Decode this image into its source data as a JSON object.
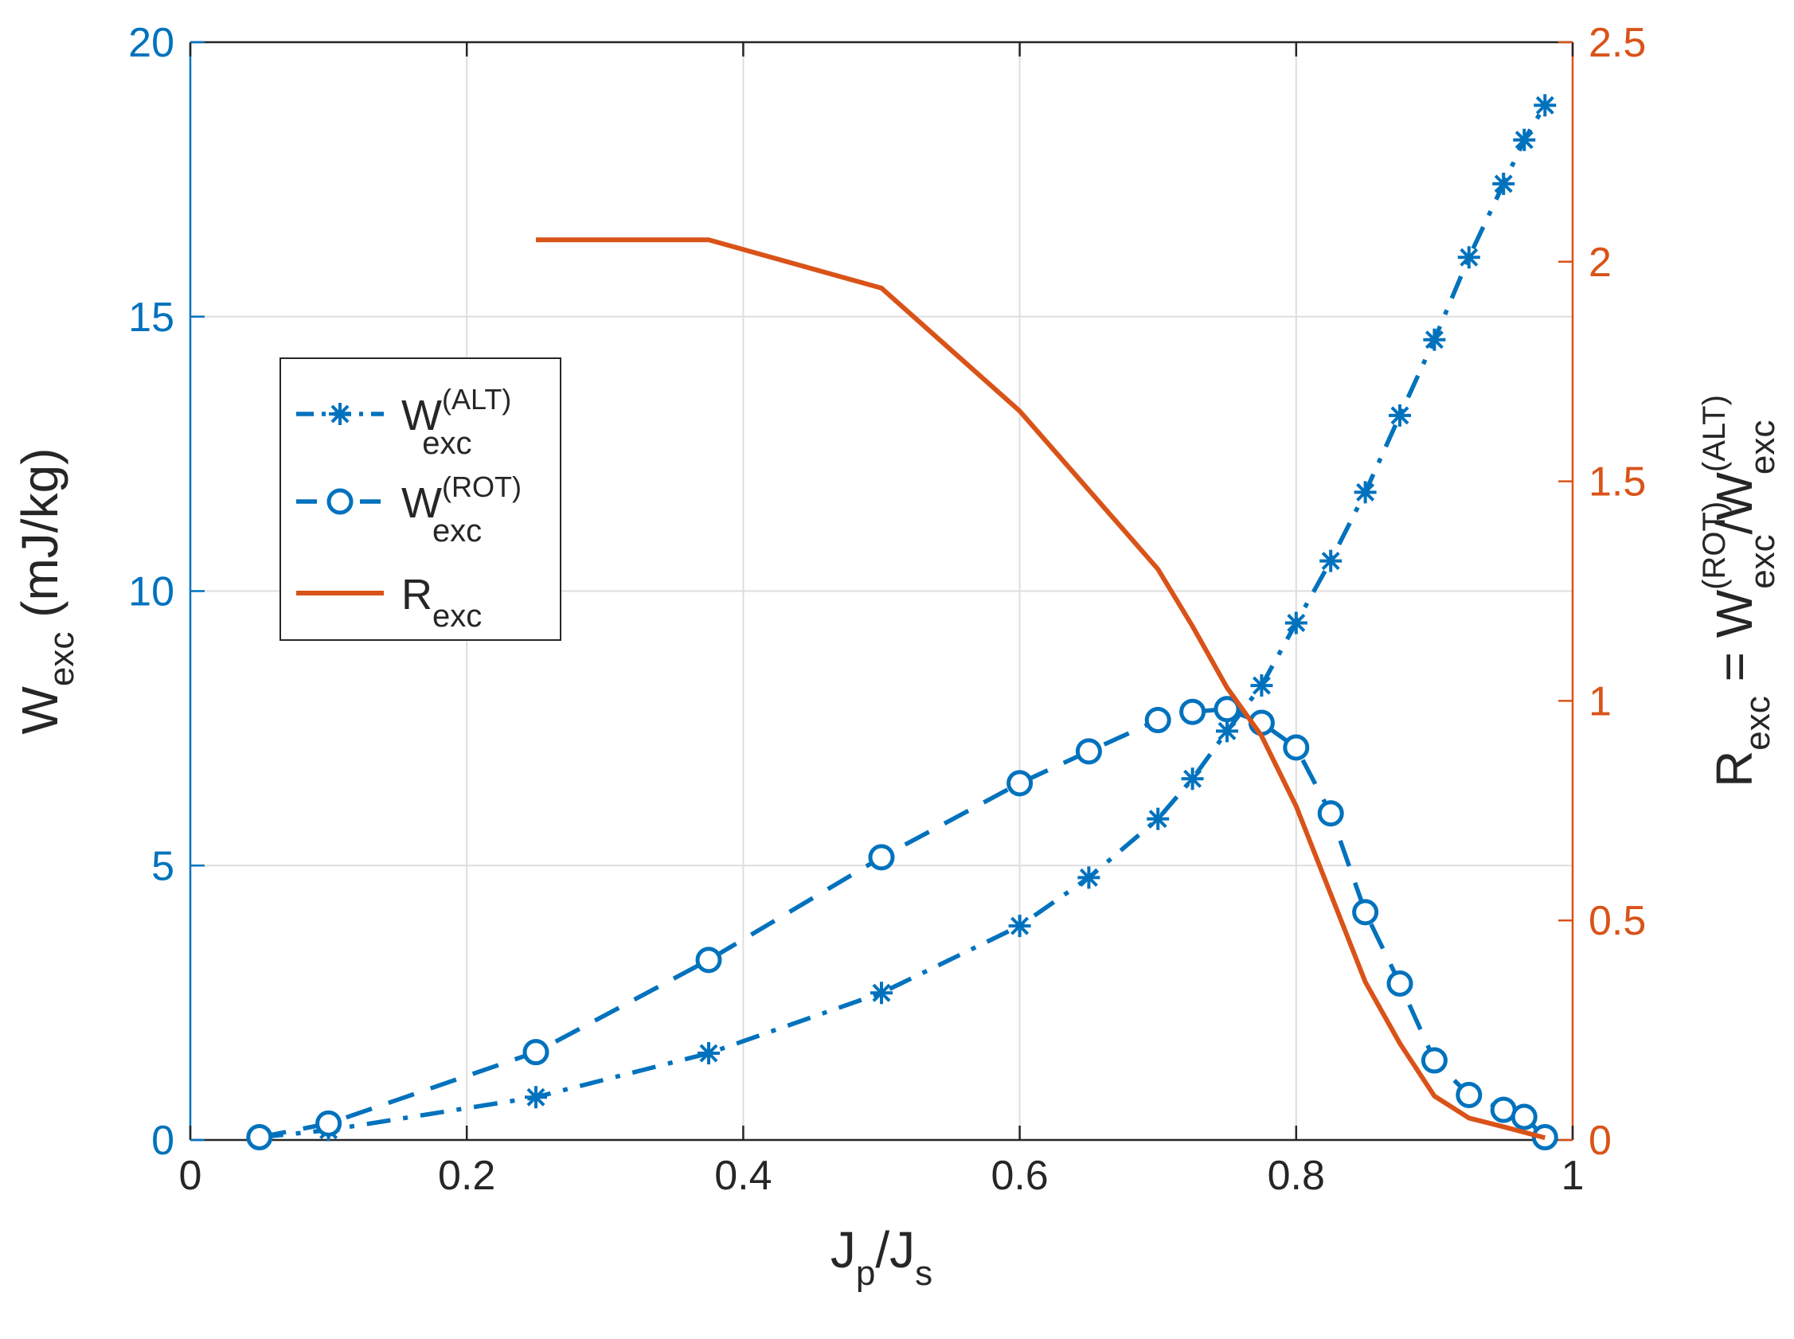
{
  "chart_data": {
    "type": "line",
    "x_axis": {
      "label": "J",
      "label_sub": "p",
      "label_mid": "/J",
      "label_sub2": "s",
      "lim": [
        0,
        1
      ],
      "ticks": [
        0,
        0.2,
        0.4,
        0.6,
        0.8,
        1
      ],
      "tick_labels": [
        "0",
        "0.2",
        "0.4",
        "0.6",
        "0.8",
        "1"
      ]
    },
    "y_left": {
      "label": "W",
      "label_sub": "exc",
      "label_unit": " (mJ/kg)",
      "lim": [
        0,
        20
      ],
      "ticks": [
        0,
        5,
        10,
        15,
        20
      ],
      "tick_labels": [
        "0",
        "5",
        "10",
        "15",
        "20"
      ],
      "color": "#0072BD"
    },
    "y_right": {
      "label_main": "R",
      "label_sub": "exc",
      "label_eq": " = W",
      "label_sup2": "(ROT)",
      "label_sub2": "exc",
      "label_div": "/W",
      "label_sup3": "(ALT)",
      "label_sub3": "exc",
      "lim": [
        0,
        2.5
      ],
      "ticks": [
        0,
        0.5,
        1,
        1.5,
        2,
        2.5
      ],
      "tick_labels": [
        "0",
        "0.5",
        "1",
        "1.5",
        "2",
        "2.5"
      ],
      "color": "#D95319"
    },
    "grid": true,
    "series": [
      {
        "name": "W_exc^(ALT)",
        "axis": "left",
        "style": "dashdot",
        "marker": "asterisk",
        "color": "#0072BD",
        "x": [
          0.05,
          0.1,
          0.25,
          0.375,
          0.5,
          0.6,
          0.65,
          0.7,
          0.725,
          0.75,
          0.775,
          0.8,
          0.825,
          0.85,
          0.875,
          0.9,
          0.925,
          0.95,
          0.965,
          0.98
        ],
        "y": [
          0.05,
          0.18,
          0.78,
          1.58,
          2.68,
          3.9,
          4.78,
          5.85,
          6.58,
          7.45,
          8.28,
          9.42,
          10.55,
          11.8,
          13.2,
          14.58,
          16.08,
          17.42,
          18.22,
          18.85
        ]
      },
      {
        "name": "W_exc^(ROT)",
        "axis": "left",
        "style": "dashed",
        "marker": "circle",
        "color": "#0072BD",
        "x": [
          0.05,
          0.1,
          0.25,
          0.375,
          0.5,
          0.6,
          0.65,
          0.7,
          0.725,
          0.75,
          0.775,
          0.8,
          0.825,
          0.85,
          0.875,
          0.9,
          0.925,
          0.95,
          0.965,
          0.98
        ],
        "y": [
          0.05,
          0.3,
          1.6,
          3.28,
          5.15,
          6.5,
          7.08,
          7.65,
          7.8,
          7.85,
          7.6,
          7.15,
          5.95,
          4.15,
          2.85,
          1.45,
          0.82,
          0.55,
          0.42,
          0.05
        ]
      },
      {
        "name": "R_exc",
        "axis": "right",
        "style": "solid",
        "marker": "none",
        "color": "#D95319",
        "x": [
          0.25,
          0.375,
          0.5,
          0.6,
          0.65,
          0.7,
          0.725,
          0.75,
          0.775,
          0.8,
          0.825,
          0.85,
          0.875,
          0.9,
          0.925,
          0.95,
          0.98
        ],
        "y": [
          2.05,
          2.05,
          1.94,
          1.66,
          1.48,
          1.3,
          1.17,
          1.03,
          0.92,
          0.76,
          0.56,
          0.36,
          0.22,
          0.1,
          0.05,
          0.03,
          0.005
        ]
      }
    ],
    "legend": {
      "location": "left, upper-middle",
      "entries": [
        {
          "main": "W",
          "sup": "(ALT)",
          "sub": "exc"
        },
        {
          "main": "W",
          "sup": "(ROT)",
          "sub": "exc"
        },
        {
          "main": "R",
          "sup": "",
          "sub": "exc"
        }
      ]
    }
  }
}
